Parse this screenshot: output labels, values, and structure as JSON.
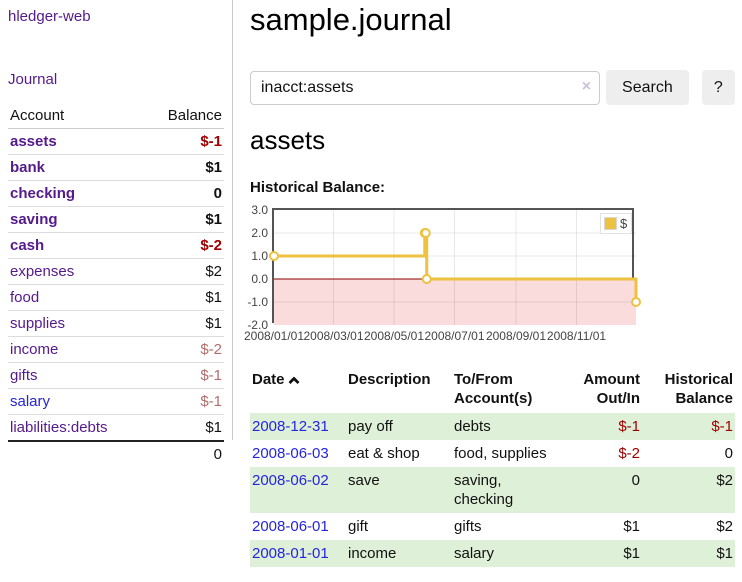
{
  "sidebar": {
    "app_title": "hledger-web",
    "journal_link": "Journal",
    "table": {
      "account_header": "Account",
      "balance_header": "Balance",
      "rows": [
        {
          "name": "assets",
          "level": 0,
          "bold": true,
          "amount": "$-1",
          "tone": "neg",
          "link": "purple"
        },
        {
          "name": "bank",
          "level": 1,
          "bold": true,
          "amount": "$1",
          "tone": "pos",
          "link": "purple"
        },
        {
          "name": "checking",
          "level": 2,
          "bold": true,
          "amount": "0",
          "tone": "pos",
          "link": "purple"
        },
        {
          "name": "saving",
          "level": 2,
          "bold": true,
          "amount": "$1",
          "tone": "pos",
          "link": "purple"
        },
        {
          "name": "cash",
          "level": 1,
          "bold": true,
          "amount": "$-2",
          "tone": "neg",
          "link": "purple"
        },
        {
          "name": "expenses",
          "level": 0,
          "bold": false,
          "amount": "$2",
          "tone": "pos",
          "link": "purple"
        },
        {
          "name": "food",
          "level": 1,
          "bold": false,
          "amount": "$1",
          "tone": "pos",
          "link": "purple"
        },
        {
          "name": "supplies",
          "level": 1,
          "bold": false,
          "amount": "$1",
          "tone": "pos",
          "link": "purple"
        },
        {
          "name": "income",
          "level": 0,
          "bold": false,
          "amount": "$-2",
          "tone": "neg-soft",
          "link": "purple"
        },
        {
          "name": "gifts",
          "level": 1,
          "bold": false,
          "amount": "$-1",
          "tone": "neg-soft",
          "link": "purple"
        },
        {
          "name": "salary",
          "level": 1,
          "bold": false,
          "amount": "$-1",
          "tone": "neg-soft",
          "link": "blue"
        },
        {
          "name": "liabilities:debts",
          "level": 0,
          "bold": false,
          "amount": "$1",
          "tone": "pos",
          "link": "purple"
        }
      ],
      "total": "0"
    }
  },
  "header": {
    "title": "sample.journal"
  },
  "search": {
    "value": "inacct:assets",
    "clear_glyph": "×",
    "button_label": "Search",
    "help_label": "?"
  },
  "main": {
    "section_title": "assets",
    "chart_label": "Historical Balance:"
  },
  "chart_data": {
    "type": "line",
    "title": "Historical Balance:",
    "step": true,
    "ylim": [
      -2,
      3
    ],
    "x_range_days": [
      0,
      365
    ],
    "y_ticks": [
      {
        "value": 3,
        "label": "3.0"
      },
      {
        "value": 2,
        "label": "2.0"
      },
      {
        "value": 1,
        "label": "1.0"
      },
      {
        "value": 0,
        "label": "0.0"
      },
      {
        "value": -1,
        "label": "-1.0"
      },
      {
        "value": -2,
        "label": "-2.0"
      }
    ],
    "x_ticks": [
      {
        "day": 0,
        "label": "2008/01/01"
      },
      {
        "day": 60,
        "label": "2008/03/01"
      },
      {
        "day": 121,
        "label": "2008/05/01"
      },
      {
        "day": 182,
        "label": "2008/07/01"
      },
      {
        "day": 244,
        "label": "2008/09/01"
      },
      {
        "day": 305,
        "label": "2008/11/01"
      }
    ],
    "series": [
      {
        "name": "$",
        "color": "#EDC240",
        "points": [
          {
            "date": "2008-01-01",
            "day": 0,
            "y": 1
          },
          {
            "date": "2008-06-01",
            "day": 152,
            "y": 2
          },
          {
            "date": "2008-06-02",
            "day": 153,
            "y": 2
          },
          {
            "date": "2008-06-03",
            "day": 154,
            "y": 0
          },
          {
            "date": "2008-12-31",
            "day": 365,
            "y": -1
          }
        ]
      }
    ],
    "negative_region_color": "#fbdcdc",
    "zero_line_color": "#8b0000",
    "grid": true,
    "legend": {
      "label": "$",
      "position": "top-right"
    }
  },
  "txn_table": {
    "headers": {
      "date": "Date",
      "sort_icon": "chevron-up",
      "description": "Description",
      "accounts": "To/From Account(s)",
      "amount": "Amount Out/In",
      "balance": "Historical Balance"
    },
    "rows": [
      {
        "date": "2008-12-31",
        "desc": "pay off",
        "accounts": "debts",
        "amount": "$-1",
        "amount_tone": "neg",
        "balance": "$-1",
        "balance_tone": "neg",
        "shaded": true
      },
      {
        "date": "2008-06-03",
        "desc": "eat & shop",
        "accounts": "food, supplies",
        "amount": "$-2",
        "amount_tone": "neg",
        "balance": "0",
        "balance_tone": "pos",
        "shaded": false
      },
      {
        "date": "2008-06-02",
        "desc": "save",
        "accounts": "saving,\nchecking",
        "amount": "0",
        "amount_tone": "pos",
        "balance": "$2",
        "balance_tone": "pos",
        "shaded": true
      },
      {
        "date": "2008-06-01",
        "desc": "gift",
        "accounts": "gifts",
        "amount": "$1",
        "amount_tone": "pos",
        "balance": "$2",
        "balance_tone": "pos",
        "shaded": false
      },
      {
        "date": "2008-01-01",
        "desc": "income",
        "accounts": "salary",
        "amount": "$1",
        "amount_tone": "pos",
        "balance": "$1",
        "balance_tone": "pos",
        "shaded": true
      }
    ]
  },
  "colors": {
    "accent_purple": "#551a8b",
    "link_blue": "#2525dd",
    "negative_red": "#a00000",
    "negative_soft_red": "#b36d6d",
    "row_green": "#dff0d8",
    "series_gold": "#EDC240"
  }
}
